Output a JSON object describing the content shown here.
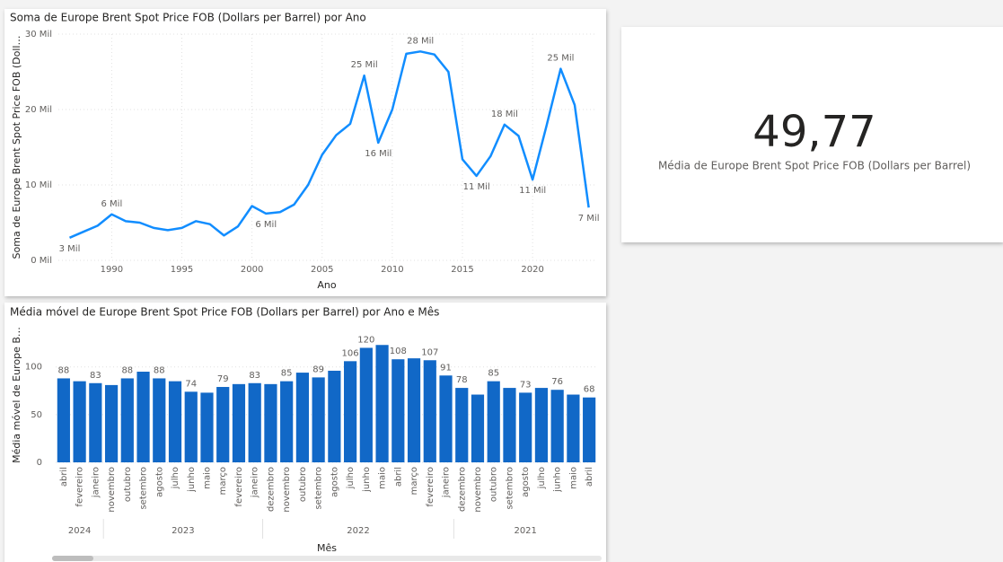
{
  "chart_data": [
    {
      "type": "line",
      "title": "Soma de Europe Brent Spot Price FOB (Dollars per Barrel) por Ano",
      "x_label": "Ano",
      "y_label": "Soma de Europe Brent Spot Price FOB (Doll…",
      "x": [
        1987,
        1988,
        1989,
        1990,
        1991,
        1992,
        1993,
        1994,
        1995,
        1996,
        1997,
        1998,
        1999,
        2000,
        2001,
        2002,
        2003,
        2004,
        2005,
        2006,
        2007,
        2008,
        2009,
        2010,
        2011,
        2012,
        2013,
        2014,
        2015,
        2016,
        2017,
        2018,
        2019,
        2020,
        2021,
        2022,
        2023,
        2024
      ],
      "series": [
        {
          "name": "Soma de Europe Brent Spot Price FOB (Dollars per Barrel)",
          "color": "#118dff",
          "values": [
            3000,
            3800,
            4600,
            6100,
            5200,
            5000,
            4300,
            4000,
            4300,
            5200,
            4800,
            3300,
            4500,
            7200,
            6200,
            6400,
            7400,
            10000,
            14000,
            16600,
            18100,
            24500,
            15600,
            20000,
            27400,
            27700,
            27300,
            25000,
            13400,
            11200,
            13800,
            18000,
            16500,
            10700,
            17900,
            25400,
            20600,
            7000
          ],
          "value_labels": [
            "3 Mil",
            null,
            null,
            "6 Mil",
            null,
            null,
            null,
            null,
            null,
            null,
            null,
            null,
            null,
            null,
            "6 Mil",
            null,
            null,
            null,
            null,
            null,
            null,
            "25 Mil",
            "16 Mil",
            null,
            null,
            "28 Mil",
            null,
            null,
            null,
            "11 Mil",
            null,
            "18 Mil",
            null,
            "11 Mil",
            null,
            "25 Mil",
            null,
            "7 Mil"
          ]
        }
      ],
      "xlim": [
        1986.2,
        2024.6
      ],
      "xticks": [
        1990,
        1995,
        2000,
        2005,
        2010,
        2015,
        2020
      ],
      "ylim": [
        0,
        30000
      ],
      "yticks": [
        {
          "value": 0,
          "label": "0 Mil"
        },
        {
          "value": 10000,
          "label": "10 Mil"
        },
        {
          "value": 20000,
          "label": "20 Mil"
        },
        {
          "value": 30000,
          "label": "30 Mil"
        }
      ],
      "grid": true
    },
    {
      "type": "bar",
      "title": "Média móvel de Europe Brent Spot Price FOB (Dollars per Barrel) por Ano e Mês",
      "x_label": "Mês",
      "y_label": "Média móvel de Europe B…",
      "categories": [
        "abril",
        "fevereiro",
        "janeiro",
        "novembro",
        "outubro",
        "setembro",
        "agosto",
        "julho",
        "junho",
        "maio",
        "março",
        "fevereiro",
        "janeiro",
        "dezembro",
        "novembro",
        "outubro",
        "setembro",
        "agosto",
        "julho",
        "junho",
        "maio",
        "abril",
        "março",
        "fevereiro",
        "janeiro",
        "dezembro",
        "novembro",
        "outubro",
        "setembro",
        "agosto",
        "julho",
        "junho",
        "maio",
        "abril"
      ],
      "groups": [
        {
          "name": "2024",
          "size": 3
        },
        {
          "name": "2023",
          "size": 10
        },
        {
          "name": "2022",
          "size": 12
        },
        {
          "name": "2021",
          "size": 9
        }
      ],
      "values": [
        88,
        85,
        83,
        81,
        88,
        95,
        88,
        85,
        74,
        73,
        79,
        82,
        83,
        82,
        85,
        94,
        89,
        96,
        106,
        120,
        123,
        108,
        109,
        107,
        91,
        78,
        71,
        85,
        78,
        73,
        78,
        76,
        71,
        68
      ],
      "value_labels": [
        88,
        null,
        83,
        null,
        88,
        null,
        88,
        null,
        74,
        null,
        79,
        null,
        83,
        null,
        85,
        null,
        89,
        null,
        106,
        120,
        null,
        108,
        null,
        107,
        91,
        78,
        null,
        85,
        null,
        73,
        null,
        76,
        null,
        68
      ],
      "color": "#1168c7",
      "ylim": [
        0,
        127
      ],
      "yticks": [
        0,
        50,
        100
      ],
      "grid": true
    }
  ],
  "card": {
    "value": "49,77",
    "label": "Média de Europe Brent Spot Price FOB (Dollars per Barrel)"
  }
}
